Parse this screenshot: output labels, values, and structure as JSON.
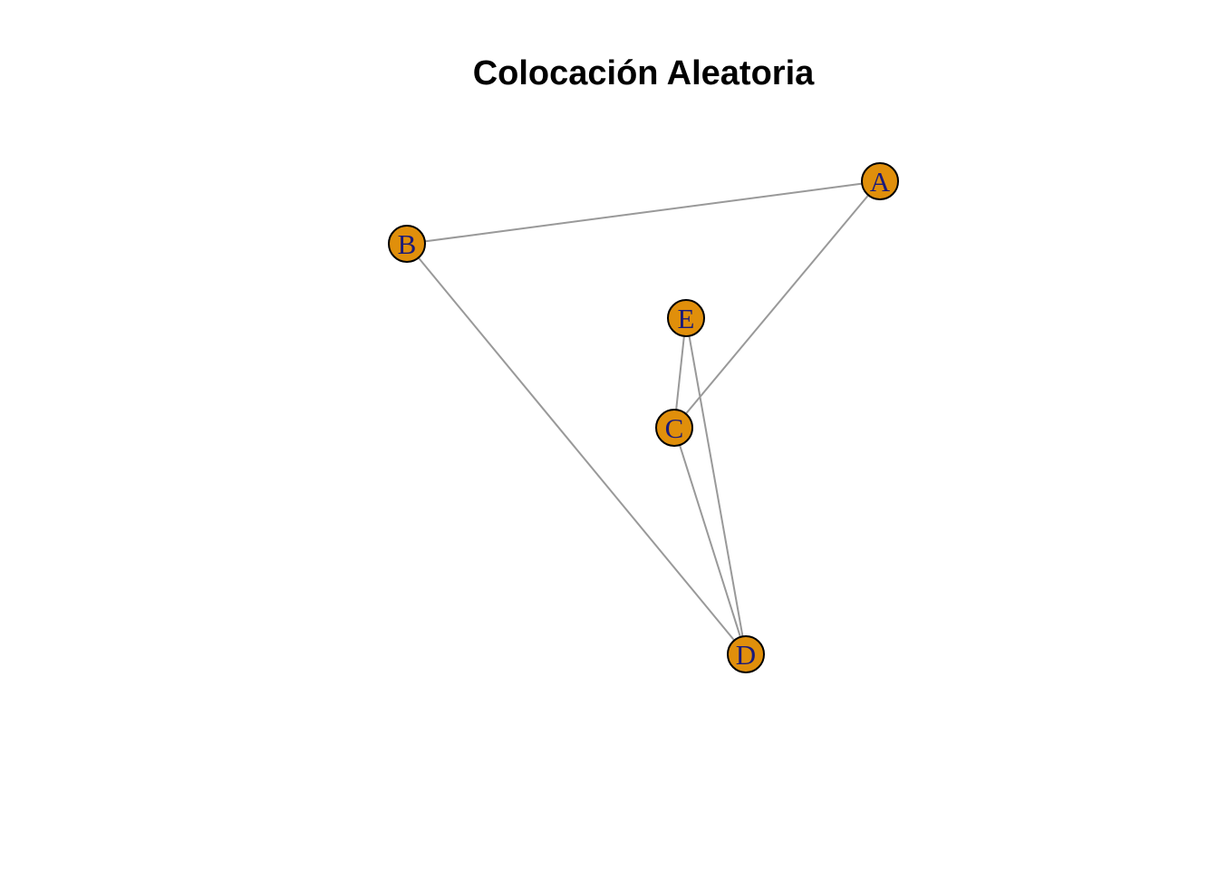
{
  "title": "Colocación Aleatoria",
  "colors": {
    "node_fill": "#E08F0B",
    "node_stroke": "#000000",
    "label": "#1A1A7A",
    "edge": "#999999"
  },
  "nodes": [
    {
      "id": "A",
      "label": "A"
    },
    {
      "id": "B",
      "label": "B"
    },
    {
      "id": "C",
      "label": "C"
    },
    {
      "id": "D",
      "label": "D"
    },
    {
      "id": "E",
      "label": "E"
    }
  ],
  "edges": [
    {
      "from": "A",
      "to": "B"
    },
    {
      "from": "A",
      "to": "C"
    },
    {
      "from": "B",
      "to": "D"
    },
    {
      "from": "C",
      "to": "E"
    },
    {
      "from": "C",
      "to": "D"
    },
    {
      "from": "E",
      "to": "D"
    }
  ]
}
